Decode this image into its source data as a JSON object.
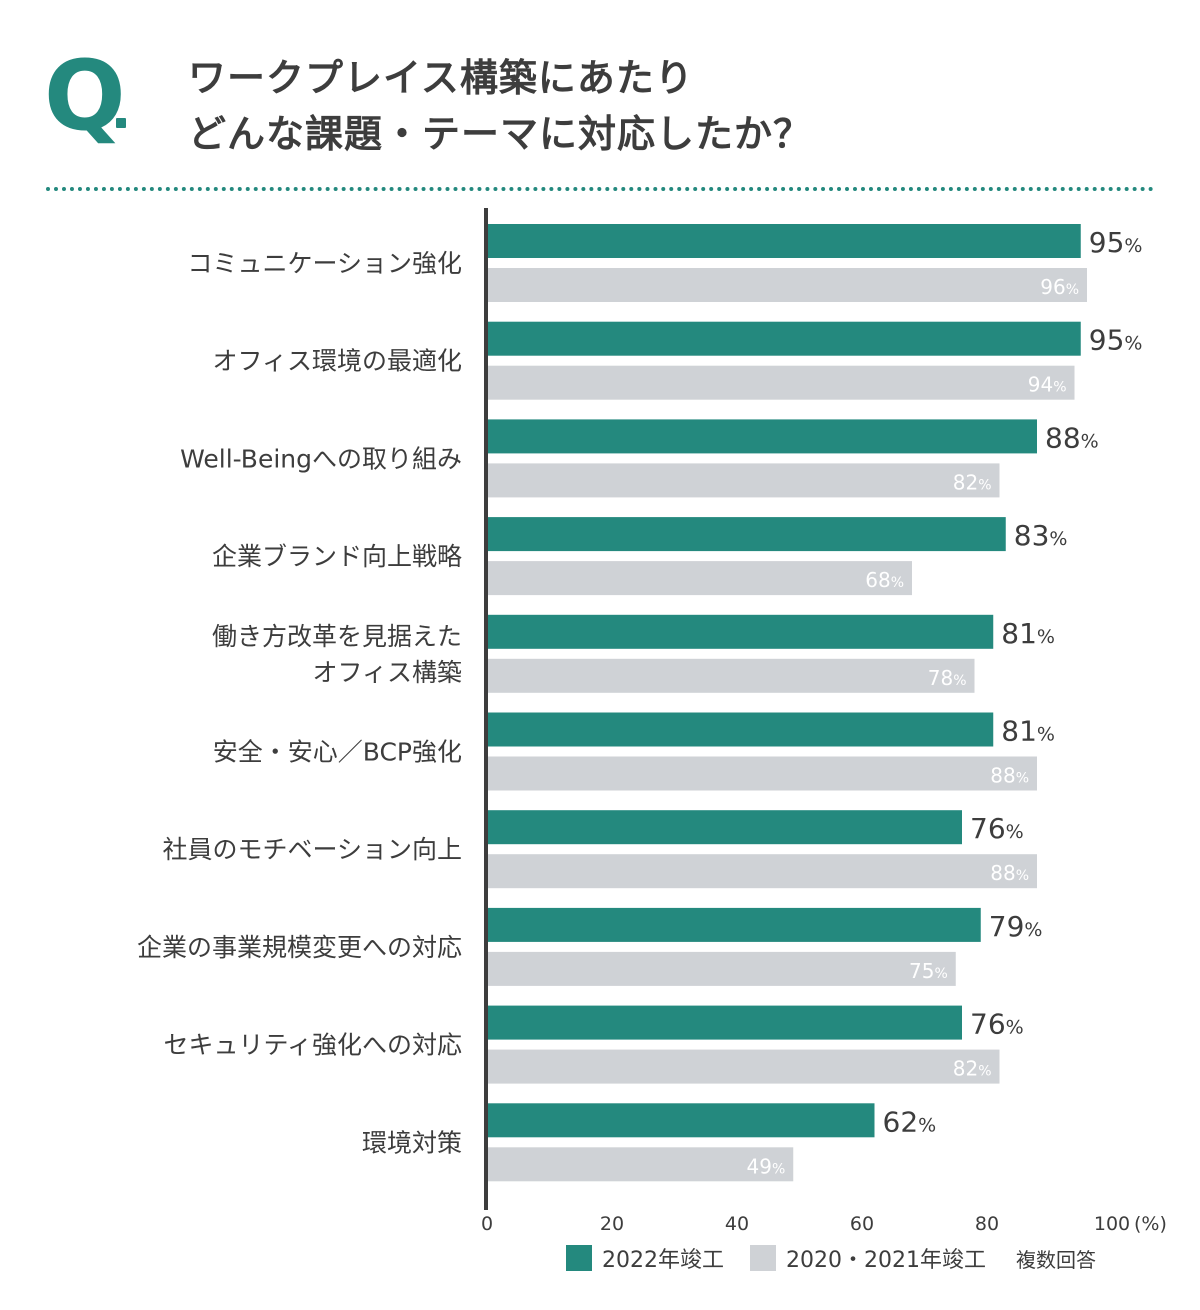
{
  "header": {
    "q_mark": "Q",
    "title_line1": "ワークプレイス構築にあたり",
    "title_line2": "どんな課題・テーマに対応したか？"
  },
  "colors": {
    "accent": "#24897e",
    "series1": "#24897e",
    "series2": "#cfd2d6",
    "axis": "#3d3d3d"
  },
  "chart_data": {
    "type": "bar",
    "orientation": "horizontal",
    "categories": [
      [
        "コミュニケーション強化"
      ],
      [
        "オフィス環境の最適化"
      ],
      [
        "Well-Beingへの取り組み"
      ],
      [
        "企業ブランド向上戦略"
      ],
      [
        "働き方改革を見据えた",
        "オフィス構築"
      ],
      [
        "安全・安心／BCP強化"
      ],
      [
        "社員のモチベーション向上"
      ],
      [
        "企業の事業規模変更への対応"
      ],
      [
        "セキュリティ強化への対応"
      ],
      [
        "環境対策"
      ]
    ],
    "series": [
      {
        "name": "2022年竣工",
        "values": [
          95,
          95,
          88,
          83,
          81,
          81,
          76,
          79,
          76,
          62
        ]
      },
      {
        "name": "2020・2021年竣工",
        "values": [
          96,
          94,
          82,
          68,
          78,
          88,
          88,
          75,
          82,
          49
        ]
      }
    ],
    "value_suffix": "%",
    "xlim": [
      0,
      100
    ],
    "xticks": [
      0,
      20,
      40,
      60,
      80,
      100
    ],
    "xunit": "(%)",
    "note": "複数回答"
  },
  "legend": {
    "series1_label": "2022年竣工",
    "series2_label": "2020・2021年竣工",
    "note": "複数回答"
  }
}
